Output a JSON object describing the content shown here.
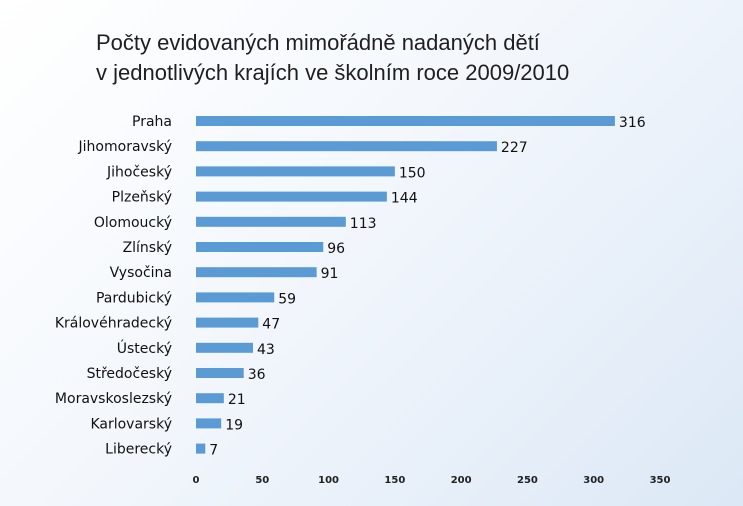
{
  "chart_data": {
    "type": "bar",
    "orientation": "horizontal",
    "title_lines": [
      "Počty evidovaných mimořádně nadaných dětí",
      "v jednotlivých krajích ve školním roce 2009/2010"
    ],
    "categories": [
      "Praha",
      "Jihomoravský",
      "Jihočeský",
      "Plzeňský",
      "Olomoucký",
      "Zlínský",
      "Vysočina",
      "Pardubický",
      "Královéhradecký",
      "Ústecký",
      "Středočeský",
      "Moravskoslezský",
      "Karlovarský",
      "Liberecký"
    ],
    "values": [
      316,
      227,
      150,
      144,
      113,
      96,
      91,
      59,
      47,
      43,
      36,
      21,
      19,
      7
    ],
    "xlim": [
      0,
      350
    ],
    "xticks": [
      "0",
      "50",
      "100",
      "150",
      "200",
      "250",
      "300",
      "350"
    ],
    "xlabel": "",
    "ylabel": "",
    "grid": false,
    "legend": "none",
    "bar_color": "#5b9bd5"
  }
}
